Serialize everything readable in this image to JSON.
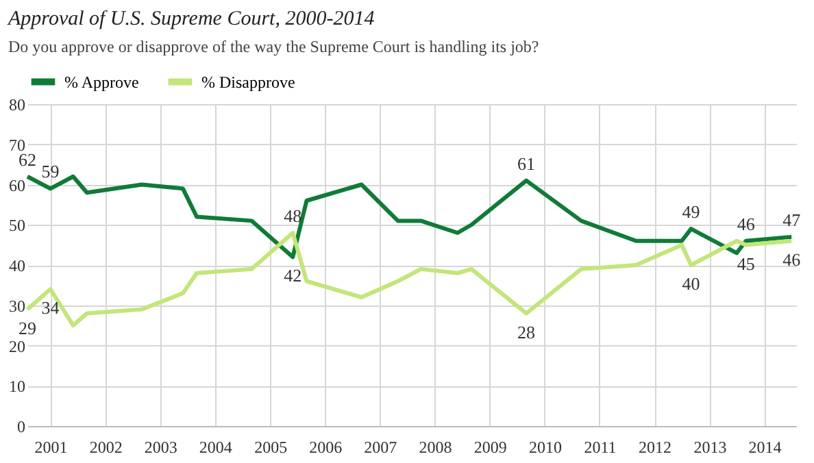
{
  "chart_data": {
    "type": "line",
    "title": "Approval of U.S. Supreme Court, 2000-2014",
    "subtitle": "Do you approve or disapprove of the way the Supreme Court is handling its job?",
    "x": [
      "2000-08",
      "2001-01",
      "2001-06",
      "2001-09",
      "2002-09",
      "2003-06",
      "2003-09",
      "2004-09",
      "2005-06",
      "2005-09",
      "2006-09",
      "2007-05",
      "2007-10",
      "2008-06",
      "2008-09",
      "2009-09",
      "2010-09",
      "2011-09",
      "2012-07",
      "2012-09",
      "2013-07",
      "2013-09",
      "2014-07"
    ],
    "series": [
      {
        "name": "% Approve",
        "color": "#0f7b37",
        "values": [
          62,
          59,
          62,
          58,
          60,
          59,
          52,
          51,
          42,
          56,
          60,
          51,
          51,
          48,
          50,
          61,
          51,
          46,
          46,
          49,
          43,
          46,
          47
        ]
      },
      {
        "name": "% Disapprove",
        "color": "#c3e57a",
        "values": [
          29,
          34,
          25,
          28,
          29,
          33,
          38,
          39,
          48,
          36,
          32,
          36,
          39,
          38,
          39,
          28,
          39,
          40,
          45,
          40,
          46,
          45,
          46
        ]
      }
    ],
    "xlim": [
      "2000-08",
      "2014-08"
    ],
    "xticks": [
      "2001",
      "2002",
      "2003",
      "2004",
      "2005",
      "2006",
      "2007",
      "2008",
      "2009",
      "2010",
      "2011",
      "2012",
      "2013",
      "2014"
    ],
    "ylim": [
      0,
      80
    ],
    "yticks": [
      0,
      10,
      20,
      30,
      40,
      50,
      60,
      70,
      80
    ],
    "grid": true,
    "legend": "top left",
    "line_style": "solid",
    "annotations": [
      {
        "text": "62",
        "x": "2000-08",
        "y": 62
      },
      {
        "text": "59",
        "x": "2001-01",
        "y": 59
      },
      {
        "text": "34",
        "x": "2001-01",
        "y": 34
      },
      {
        "text": "29",
        "x": "2000-08",
        "y": 29
      },
      {
        "text": "48",
        "x": "2005-06",
        "y": 48
      },
      {
        "text": "42",
        "x": "2005-06",
        "y": 42
      },
      {
        "text": "61",
        "x": "2009-09",
        "y": 61
      },
      {
        "text": "28",
        "x": "2009-09",
        "y": 28
      },
      {
        "text": "49",
        "x": "2012-09",
        "y": 49
      },
      {
        "text": "40",
        "x": "2012-09",
        "y": 40
      },
      {
        "text": "46",
        "x": "2013-09",
        "y": 46
      },
      {
        "text": "45",
        "x": "2013-09",
        "y": 45
      },
      {
        "text": "47",
        "x": "2014-07",
        "y": 47
      },
      {
        "text": "46",
        "x": "2014-07",
        "y": 46
      }
    ]
  }
}
